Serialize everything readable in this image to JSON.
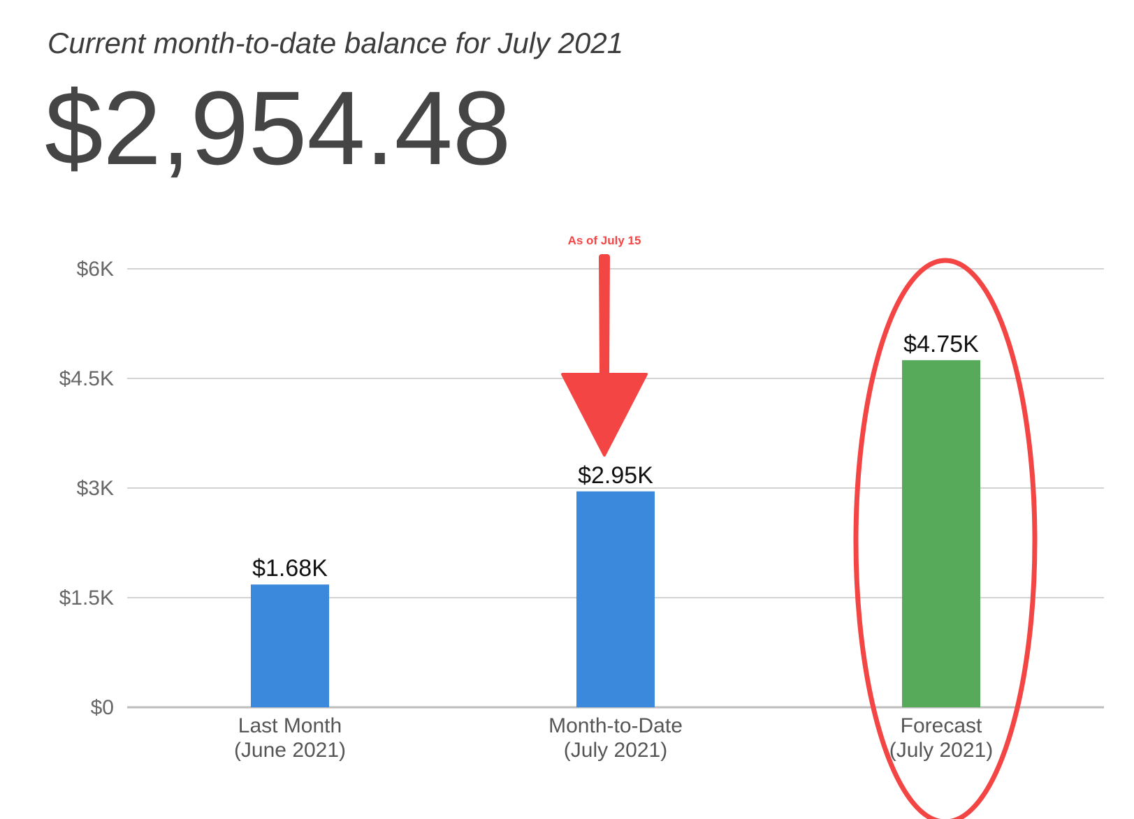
{
  "header": {
    "subtitle": "Current month-to-date balance for July 2021",
    "balance": "$2,954.48"
  },
  "chart_data": {
    "type": "bar",
    "categories": [
      [
        "Last Month",
        "(June 2021)"
      ],
      [
        "Month-to-Date",
        "(July 2021)"
      ],
      [
        "Forecast",
        "(July 2021)"
      ]
    ],
    "values": [
      1680,
      2954.48,
      4750
    ],
    "value_labels": [
      "$1.68K",
      "$2.95K",
      "$4.75K"
    ],
    "colors": [
      "#3a89dc",
      "#3a89dc",
      "#58aa5b"
    ],
    "ylim": [
      0,
      6000
    ],
    "yticks": [
      0,
      1500,
      3000,
      4500,
      6000
    ],
    "ytick_labels": [
      "$0",
      "$1.5K",
      "$3K",
      "$4.5K",
      "$6K"
    ],
    "grid": true,
    "annotations": {
      "arrow_label": "As of July 15",
      "arrow_target_category": 1,
      "arrow_color": "#f44545",
      "ellipse_target_category": 2,
      "ellipse_color": "#f44545"
    }
  }
}
